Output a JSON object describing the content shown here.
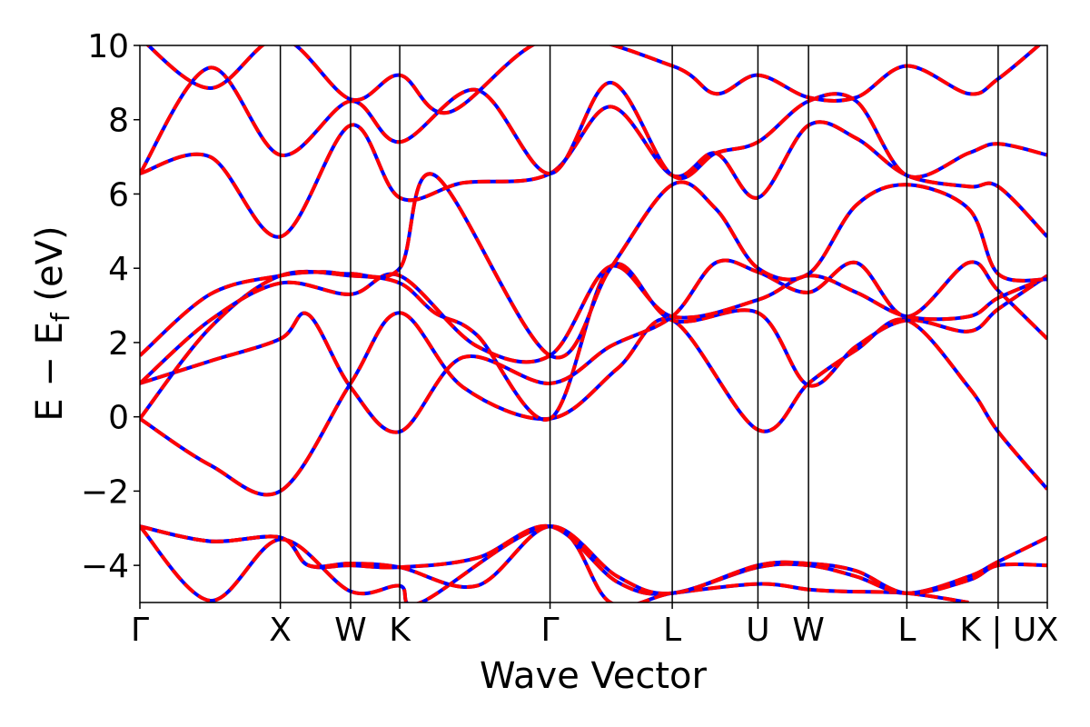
{
  "chart_data": {
    "type": "line",
    "xlabel": "Wave Vector",
    "ylabel": "E − E",
    "ylabel_sub": "f",
    "ylabel_unit": " (eV)",
    "ylim": [
      -5,
      10
    ],
    "yticks": [
      -4,
      -2,
      0,
      2,
      4,
      6,
      8,
      10
    ],
    "ytick_labels": [
      "−4",
      "−2",
      "0",
      "2",
      "4",
      "6",
      "8",
      "10"
    ],
    "xlim": [
      0,
      6.46
    ],
    "kpoints": [
      {
        "label": "Γ",
        "x": 0
      },
      {
        "label": "X",
        "x": 1.0
      },
      {
        "label": "W",
        "x": 1.5
      },
      {
        "label": "K",
        "x": 1.85
      },
      {
        "label": "Γ",
        "x": 2.92
      },
      {
        "label": "L",
        "x": 3.79
      },
      {
        "label": "U",
        "x": 4.4
      },
      {
        "label": "W",
        "x": 4.76
      },
      {
        "label": "L",
        "x": 5.46
      },
      {
        "label": "K | U",
        "x": 6.11
      },
      {
        "label": "X",
        "x": 6.46
      }
    ],
    "grid": false,
    "series_style": [
      {
        "color": "#0000ff",
        "style": "solid"
      },
      {
        "color": "#ff0000",
        "style": "dashed"
      }
    ],
    "bands": [
      [
        [
          0,
          -2.95
        ],
        [
          0.5,
          -4.95
        ],
        [
          1.0,
          -3.3
        ],
        [
          1.5,
          -4.7
        ],
        [
          1.85,
          -4.55
        ],
        [
          2.0,
          -5.0
        ],
        [
          2.92,
          -2.95
        ],
        [
          3.35,
          -5.0
        ],
        [
          3.79,
          -4.75
        ],
        [
          4.4,
          -4.5
        ],
        [
          4.76,
          -4.65
        ],
        [
          5.0,
          -4.7
        ],
        [
          5.46,
          -4.75
        ],
        [
          5.9,
          -5.0
        ]
      ],
      [
        [
          0,
          -2.95
        ],
        [
          0.5,
          -3.35
        ],
        [
          1.0,
          -3.25
        ],
        [
          1.2,
          -4.0
        ],
        [
          1.5,
          -4.0
        ],
        [
          1.85,
          -4.05
        ],
        [
          2.4,
          -3.8
        ],
        [
          2.92,
          -2.95
        ],
        [
          3.4,
          -4.45
        ],
        [
          3.79,
          -4.75
        ],
        [
          4.4,
          -4.05
        ],
        [
          4.76,
          -4.0
        ],
        [
          5.1,
          -4.3
        ],
        [
          5.46,
          -4.75
        ],
        [
          5.9,
          -4.3
        ],
        [
          6.11,
          -3.9
        ],
        [
          6.46,
          -3.25
        ]
      ],
      [
        [
          0,
          -2.95
        ],
        [
          0.5,
          -3.35
        ],
        [
          1.0,
          -3.25
        ],
        [
          1.2,
          -4.0
        ],
        [
          1.5,
          -3.95
        ],
        [
          1.85,
          -4.05
        ],
        [
          2.4,
          -4.55
        ],
        [
          2.92,
          -2.95
        ],
        [
          3.4,
          -4.3
        ],
        [
          3.79,
          -4.75
        ],
        [
          4.4,
          -4.0
        ],
        [
          4.76,
          -3.95
        ],
        [
          5.1,
          -4.15
        ],
        [
          5.46,
          -4.75
        ],
        [
          5.9,
          -4.4
        ],
        [
          6.11,
          -4.0
        ],
        [
          6.46,
          -4.0
        ]
      ],
      [
        [
          0,
          -0.05
        ],
        [
          0.5,
          -1.3
        ],
        [
          1.0,
          -2.0
        ],
        [
          1.5,
          0.9
        ],
        [
          1.85,
          2.8
        ],
        [
          2.3,
          0.8
        ],
        [
          2.92,
          -0.05
        ],
        [
          3.4,
          1.3
        ],
        [
          3.79,
          2.6
        ],
        [
          4.4,
          -0.35
        ],
        [
          4.76,
          0.9
        ],
        [
          5.1,
          1.8
        ],
        [
          5.46,
          2.6
        ],
        [
          5.9,
          0.8
        ],
        [
          6.11,
          -0.4
        ],
        [
          6.46,
          -1.95
        ]
      ],
      [
        [
          0,
          -0.05
        ],
        [
          0.5,
          2.4
        ],
        [
          1.0,
          3.8
        ],
        [
          1.5,
          3.8
        ],
        [
          1.85,
          3.6
        ],
        [
          2.1,
          2.8
        ],
        [
          2.4,
          2.2
        ],
        [
          2.92,
          -0.05
        ],
        [
          3.35,
          4.05
        ],
        [
          3.79,
          2.6
        ],
        [
          4.4,
          2.8
        ],
        [
          4.76,
          0.85
        ],
        [
          5.1,
          1.9
        ],
        [
          5.46,
          2.6
        ],
        [
          5.9,
          2.3
        ],
        [
          6.11,
          2.9
        ],
        [
          6.46,
          3.8
        ]
      ],
      [
        [
          0,
          0.9
        ],
        [
          0.5,
          1.5
        ],
        [
          1.0,
          2.1
        ],
        [
          1.2,
          2.75
        ],
        [
          1.5,
          0.8
        ],
        [
          1.85,
          -0.4
        ],
        [
          2.3,
          1.6
        ],
        [
          2.92,
          0.9
        ],
        [
          3.35,
          1.9
        ],
        [
          3.79,
          2.7
        ],
        [
          4.1,
          4.15
        ],
        [
          4.4,
          3.9
        ],
        [
          4.76,
          3.35
        ],
        [
          5.1,
          4.15
        ],
        [
          5.46,
          2.7
        ],
        [
          5.9,
          4.15
        ],
        [
          6.11,
          3.4
        ],
        [
          6.46,
          2.1
        ]
      ],
      [
        [
          0,
          0.9
        ],
        [
          0.5,
          2.6
        ],
        [
          1.0,
          3.6
        ],
        [
          1.5,
          3.3
        ],
        [
          1.85,
          3.8
        ],
        [
          2.4,
          1.9
        ],
        [
          2.92,
          1.65
        ],
        [
          3.35,
          4.05
        ],
        [
          3.79,
          2.7
        ],
        [
          4.4,
          3.15
        ],
        [
          4.76,
          3.8
        ],
        [
          5.1,
          3.35
        ],
        [
          5.46,
          2.7
        ],
        [
          5.9,
          2.7
        ],
        [
          6.11,
          3.2
        ],
        [
          6.46,
          3.75
        ]
      ],
      [
        [
          0,
          1.65
        ],
        [
          0.5,
          3.3
        ],
        [
          1.0,
          3.8
        ],
        [
          1.3,
          3.9
        ],
        [
          1.5,
          3.85
        ],
        [
          1.85,
          4.0
        ],
        [
          2.1,
          6.5
        ],
        [
          2.92,
          1.65
        ],
        [
          3.35,
          4.0
        ],
        [
          3.79,
          6.25
        ],
        [
          4.1,
          5.6
        ],
        [
          4.4,
          4.0
        ],
        [
          4.76,
          3.85
        ],
        [
          5.1,
          5.7
        ],
        [
          5.46,
          6.25
        ],
        [
          5.9,
          5.6
        ],
        [
          6.11,
          3.85
        ],
        [
          6.46,
          3.7
        ]
      ],
      [
        [
          0,
          6.55
        ],
        [
          0.5,
          7.0
        ],
        [
          1.0,
          4.85
        ],
        [
          1.5,
          7.85
        ],
        [
          1.85,
          5.9
        ],
        [
          2.3,
          6.3
        ],
        [
          2.92,
          6.55
        ],
        [
          3.35,
          8.35
        ],
        [
          3.79,
          6.5
        ],
        [
          4.1,
          7.1
        ],
        [
          4.4,
          5.9
        ],
        [
          4.76,
          7.85
        ],
        [
          5.1,
          7.5
        ],
        [
          5.46,
          6.5
        ],
        [
          5.9,
          6.2
        ],
        [
          6.11,
          6.2
        ],
        [
          6.46,
          4.85
        ]
      ],
      [
        [
          0,
          6.55
        ],
        [
          0.5,
          9.4
        ],
        [
          1.0,
          7.05
        ],
        [
          1.5,
          8.5
        ],
        [
          1.85,
          7.4
        ],
        [
          2.4,
          8.8
        ],
        [
          2.92,
          6.55
        ],
        [
          3.35,
          9.0
        ],
        [
          3.79,
          6.5
        ],
        [
          4.1,
          7.1
        ],
        [
          4.4,
          7.4
        ],
        [
          4.76,
          8.5
        ],
        [
          5.1,
          8.5
        ],
        [
          5.46,
          6.5
        ],
        [
          5.9,
          7.1
        ],
        [
          6.11,
          7.35
        ],
        [
          6.46,
          7.05
        ]
      ],
      [
        [
          0,
          10.2
        ],
        [
          0.5,
          8.85
        ],
        [
          1.0,
          10.2
        ],
        [
          1.5,
          8.55
        ],
        [
          1.85,
          9.2
        ],
        [
          2.2,
          8.2
        ],
        [
          2.92,
          10.2
        ],
        [
          3.79,
          9.45
        ],
        [
          4.1,
          8.7
        ],
        [
          4.4,
          9.2
        ],
        [
          4.76,
          8.6
        ],
        [
          5.1,
          8.6
        ],
        [
          5.46,
          9.45
        ],
        [
          5.9,
          8.7
        ],
        [
          6.11,
          9.1
        ],
        [
          6.46,
          10.2
        ]
      ]
    ]
  }
}
